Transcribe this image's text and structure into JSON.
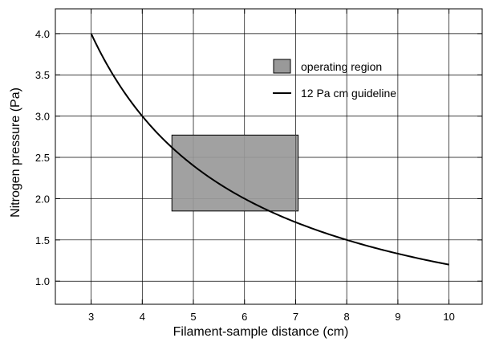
{
  "chart_data": {
    "type": "line",
    "xlabel": "Filament-sample distance (cm)",
    "ylabel": "Nitrogen pressure (Pa)",
    "xlim": [
      2.3,
      10.65
    ],
    "ylim": [
      0.72,
      4.3
    ],
    "xticks": [
      3,
      4,
      5,
      6,
      7,
      8,
      9,
      10
    ],
    "xtick_labels": [
      "3",
      "4",
      "5",
      "6",
      "7",
      "8",
      "9",
      "10"
    ],
    "yticks": [
      1.0,
      1.5,
      2.0,
      2.5,
      3.0,
      3.5,
      4.0
    ],
    "ytick_labels": [
      "1.0",
      "1.5",
      "2.0",
      "2.5",
      "3.0",
      "3.5",
      "4.0"
    ],
    "grid": true,
    "legend_position": "top-right",
    "series": [
      {
        "name": "12 Pa cm guideline",
        "kind": "line",
        "color": "#000000",
        "x": [
          3,
          3.5,
          4,
          4.5,
          5,
          5.5,
          6,
          6.5,
          7,
          7.5,
          8,
          8.5,
          9,
          9.5,
          10
        ],
        "y": [
          4.0,
          3.4286,
          3.0,
          2.6667,
          2.4,
          2.1818,
          2.0,
          1.8462,
          1.7143,
          1.6,
          1.5,
          1.4118,
          1.3333,
          1.2632,
          1.2
        ]
      }
    ],
    "regions": [
      {
        "name": "operating region",
        "kind": "rectangle",
        "color": "#999999",
        "x_range": [
          4.58,
          7.05
        ],
        "y_range": [
          1.85,
          2.77
        ]
      }
    ],
    "legend": [
      {
        "label": "operating region",
        "kind": "patch",
        "color": "#999999"
      },
      {
        "label": "12 Pa cm guideline",
        "kind": "line",
        "color": "#000000"
      }
    ]
  }
}
